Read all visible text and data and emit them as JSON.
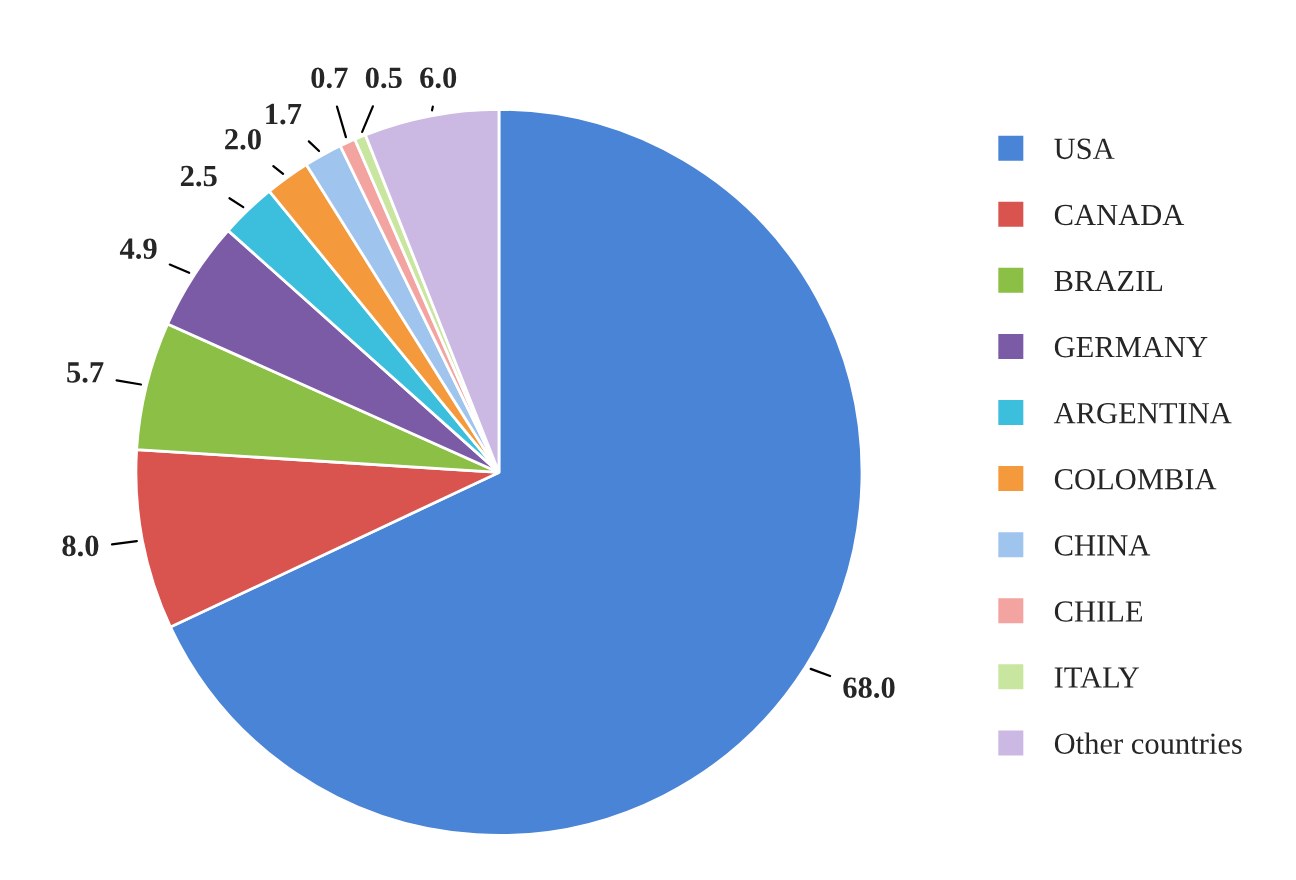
{
  "chart_data": {
    "type": "pie",
    "categories": [
      "USA",
      "CANADA",
      "BRAZIL",
      "GERMANY",
      "ARGENTINA",
      "COLOMBIA",
      "CHINA",
      "CHILE",
      "ITALY",
      "Other countries"
    ],
    "values": [
      68.0,
      8.0,
      5.7,
      4.9,
      2.5,
      2.0,
      1.7,
      0.7,
      0.5,
      6.0
    ],
    "colors": [
      "#4a84d6",
      "#d9534f",
      "#8cbf45",
      "#7b5aa6",
      "#3bbfdc",
      "#f49a3c",
      "#9fc4ee",
      "#f3a3a0",
      "#c9e6a0",
      "#cbb9e3"
    ],
    "value_labels": [
      "68.0",
      "8.0",
      "5.7",
      "4.9",
      "2.5",
      "2.0",
      "1.7",
      "0.7",
      "0.5",
      "6.0"
    ],
    "legend": "right"
  }
}
